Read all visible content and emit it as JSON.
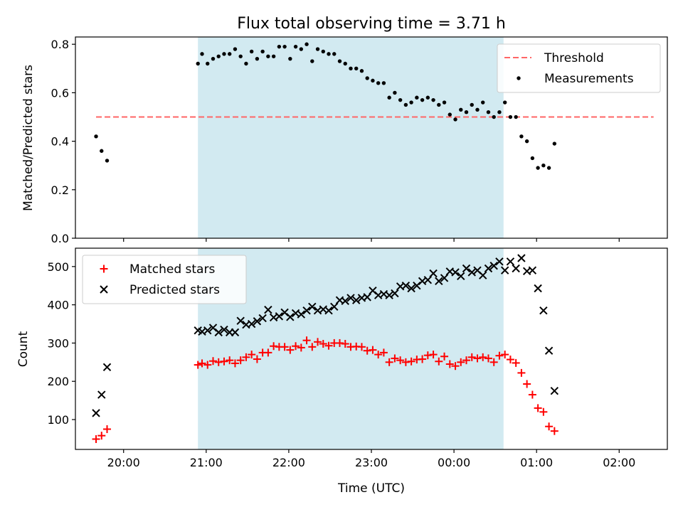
{
  "chart_data": [
    {
      "type": "scatter",
      "title": "Flux total observing time = 3.71 h",
      "ylabel": "Matched/Predicted stars",
      "xlabel": "",
      "xlim": [
        "19:25",
        "02:35"
      ],
      "ylim": [
        0,
        0.83
      ],
      "yticks": [
        "0.0",
        "0.2",
        "0.4",
        "0.6",
        "0.8"
      ],
      "shaded_interval": [
        "20:54",
        "00:36"
      ],
      "shade_color": "#add8e6",
      "threshold": {
        "name": "Threshold",
        "value": 0.5,
        "x": [
          "19:40",
          "02:25"
        ],
        "color": "#ff6666"
      },
      "series": [
        {
          "name": "Measurements",
          "color": "#000000",
          "points": [
            [
              "19:40",
              0.42
            ],
            [
              "19:44",
              0.36
            ],
            [
              "19:48",
              0.32
            ],
            [
              "20:54",
              0.72
            ],
            [
              "20:57",
              0.76
            ],
            [
              "21:01",
              0.72
            ],
            [
              "21:05",
              0.74
            ],
            [
              "21:09",
              0.75
            ],
            [
              "21:13",
              0.76
            ],
            [
              "21:17",
              0.76
            ],
            [
              "21:21",
              0.78
            ],
            [
              "21:25",
              0.75
            ],
            [
              "21:29",
              0.72
            ],
            [
              "21:33",
              0.77
            ],
            [
              "21:37",
              0.74
            ],
            [
              "21:41",
              0.77
            ],
            [
              "21:45",
              0.75
            ],
            [
              "21:49",
              0.75
            ],
            [
              "21:53",
              0.79
            ],
            [
              "21:57",
              0.79
            ],
            [
              "22:01",
              0.74
            ],
            [
              "22:05",
              0.79
            ],
            [
              "22:09",
              0.78
            ],
            [
              "22:13",
              0.8
            ],
            [
              "22:17",
              0.73
            ],
            [
              "22:21",
              0.78
            ],
            [
              "22:25",
              0.77
            ],
            [
              "22:29",
              0.76
            ],
            [
              "22:33",
              0.76
            ],
            [
              "22:37",
              0.73
            ],
            [
              "22:41",
              0.72
            ],
            [
              "22:45",
              0.7
            ],
            [
              "22:49",
              0.7
            ],
            [
              "22:53",
              0.69
            ],
            [
              "22:57",
              0.66
            ],
            [
              "23:01",
              0.65
            ],
            [
              "23:05",
              0.64
            ],
            [
              "23:09",
              0.64
            ],
            [
              "23:13",
              0.58
            ],
            [
              "23:17",
              0.6
            ],
            [
              "23:21",
              0.57
            ],
            [
              "23:25",
              0.55
            ],
            [
              "23:29",
              0.56
            ],
            [
              "23:33",
              0.58
            ],
            [
              "23:37",
              0.57
            ],
            [
              "23:41",
              0.58
            ],
            [
              "23:45",
              0.57
            ],
            [
              "23:49",
              0.55
            ],
            [
              "23:53",
              0.56
            ],
            [
              "23:57",
              0.51
            ],
            [
              "00:01",
              0.49
            ],
            [
              "00:05",
              0.53
            ],
            [
              "00:09",
              0.52
            ],
            [
              "00:13",
              0.55
            ],
            [
              "00:17",
              0.53
            ],
            [
              "00:21",
              0.56
            ],
            [
              "00:25",
              0.52
            ],
            [
              "00:29",
              0.5
            ],
            [
              "00:33",
              0.52
            ],
            [
              "00:37",
              0.56
            ],
            [
              "00:41",
              0.5
            ],
            [
              "00:45",
              0.5
            ],
            [
              "00:49",
              0.42
            ],
            [
              "00:53",
              0.4
            ],
            [
              "00:57",
              0.33
            ],
            [
              "01:01",
              0.29
            ],
            [
              "01:05",
              0.3
            ],
            [
              "01:09",
              0.29
            ],
            [
              "01:13",
              0.39
            ]
          ]
        }
      ],
      "legend": "top-right"
    },
    {
      "type": "scatter",
      "title": "",
      "xlabel": "Time (UTC)",
      "ylabel": "Count",
      "xlim": [
        "19:25",
        "02:35"
      ],
      "ylim": [
        22,
        548
      ],
      "yticks": [
        "100",
        "200",
        "300",
        "400",
        "500"
      ],
      "xticks": [
        "20:00",
        "21:00",
        "22:00",
        "23:00",
        "00:00",
        "01:00",
        "02:00"
      ],
      "shaded_interval": [
        "20:54",
        "00:36"
      ],
      "shade_color": "#add8e6",
      "series": [
        {
          "name": "Matched stars",
          "marker": "+",
          "color": "#ff0000",
          "points": [
            [
              "19:40",
              49
            ],
            [
              "19:44",
              58
            ],
            [
              "19:48",
              75
            ],
            [
              "20:54",
              243
            ],
            [
              "20:57",
              247
            ],
            [
              "21:01",
              243
            ],
            [
              "21:05",
              253
            ],
            [
              "21:09",
              250
            ],
            [
              "21:13",
              252
            ],
            [
              "21:17",
              255
            ],
            [
              "21:21",
              247
            ],
            [
              "21:25",
              255
            ],
            [
              "21:29",
              263
            ],
            [
              "21:33",
              270
            ],
            [
              "21:37",
              258
            ],
            [
              "21:41",
              275
            ],
            [
              "21:45",
              275
            ],
            [
              "21:49",
              292
            ],
            [
              "21:53",
              290
            ],
            [
              "21:57",
              290
            ],
            [
              "22:01",
              282
            ],
            [
              "22:05",
              292
            ],
            [
              "22:09",
              288
            ],
            [
              "22:13",
              307
            ],
            [
              "22:17",
              290
            ],
            [
              "22:21",
              303
            ],
            [
              "22:25",
              298
            ],
            [
              "22:29",
              293
            ],
            [
              "22:33",
              300
            ],
            [
              "22:37",
              300
            ],
            [
              "22:41",
              298
            ],
            [
              "22:45",
              290
            ],
            [
              "22:49",
              291
            ],
            [
              "22:53",
              290
            ],
            [
              "22:57",
              280
            ],
            [
              "23:01",
              282
            ],
            [
              "23:05",
              270
            ],
            [
              "23:09",
              275
            ],
            [
              "23:13",
              250
            ],
            [
              "23:17",
              260
            ],
            [
              "23:21",
              255
            ],
            [
              "23:25",
              250
            ],
            [
              "23:29",
              252
            ],
            [
              "23:33",
              257
            ],
            [
              "23:37",
              258
            ],
            [
              "23:41",
              268
            ],
            [
              "23:45",
              270
            ],
            [
              "23:49",
              252
            ],
            [
              "23:53",
              265
            ],
            [
              "23:57",
              245
            ],
            [
              "00:01",
              240
            ],
            [
              "00:05",
              250
            ],
            [
              "00:09",
              255
            ],
            [
              "00:13",
              263
            ],
            [
              "00:17",
              260
            ],
            [
              "00:21",
              263
            ],
            [
              "00:25",
              260
            ],
            [
              "00:29",
              250
            ],
            [
              "00:33",
              267
            ],
            [
              "00:37",
              270
            ],
            [
              "00:41",
              257
            ],
            [
              "00:45",
              248
            ],
            [
              "00:49",
              222
            ],
            [
              "00:53",
              193
            ],
            [
              "00:57",
              165
            ],
            [
              "01:01",
              130
            ],
            [
              "01:05",
              120
            ],
            [
              "01:09",
              82
            ],
            [
              "01:13",
              70
            ]
          ]
        },
        {
          "name": "Predicted stars",
          "marker": "x",
          "color": "#000000",
          "points": [
            [
              "19:40",
              117
            ],
            [
              "19:44",
              165
            ],
            [
              "19:48",
              237
            ],
            [
              "20:54",
              333
            ],
            [
              "20:57",
              330
            ],
            [
              "21:01",
              333
            ],
            [
              "21:05",
              340
            ],
            [
              "21:09",
              328
            ],
            [
              "21:13",
              335
            ],
            [
              "21:17",
              328
            ],
            [
              "21:21",
              328
            ],
            [
              "21:25",
              358
            ],
            [
              "21:29",
              348
            ],
            [
              "21:33",
              350
            ],
            [
              "21:37",
              357
            ],
            [
              "21:41",
              365
            ],
            [
              "21:45",
              387
            ],
            [
              "21:49",
              367
            ],
            [
              "21:53",
              370
            ],
            [
              "21:57",
              380
            ],
            [
              "22:01",
              368
            ],
            [
              "22:05",
              378
            ],
            [
              "22:09",
              375
            ],
            [
              "22:13",
              385
            ],
            [
              "22:17",
              395
            ],
            [
              "22:21",
              385
            ],
            [
              "22:25",
              388
            ],
            [
              "22:29",
              385
            ],
            [
              "22:33",
              395
            ],
            [
              "22:37",
              412
            ],
            [
              "22:41",
              410
            ],
            [
              "22:45",
              418
            ],
            [
              "22:49",
              412
            ],
            [
              "22:53",
              418
            ],
            [
              "22:57",
              420
            ],
            [
              "23:01",
              437
            ],
            [
              "23:05",
              425
            ],
            [
              "23:09",
              428
            ],
            [
              "23:13",
              425
            ],
            [
              "23:17",
              430
            ],
            [
              "23:21",
              448
            ],
            [
              "23:25",
              450
            ],
            [
              "23:29",
              443
            ],
            [
              "23:33",
              450
            ],
            [
              "23:37",
              462
            ],
            [
              "23:41",
              465
            ],
            [
              "23:45",
              482
            ],
            [
              "23:49",
              462
            ],
            [
              "23:53",
              470
            ],
            [
              "23:57",
              487
            ],
            [
              "00:01",
              485
            ],
            [
              "00:05",
              475
            ],
            [
              "00:09",
              495
            ],
            [
              "00:13",
              485
            ],
            [
              "00:17",
              490
            ],
            [
              "00:21",
              477
            ],
            [
              "00:25",
              495
            ],
            [
              "00:29",
              502
            ],
            [
              "00:33",
              513
            ],
            [
              "00:37",
              490
            ],
            [
              "00:41",
              513
            ],
            [
              "00:45",
              495
            ],
            [
              "00:49",
              522
            ],
            [
              "00:53",
              488
            ],
            [
              "00:57",
              490
            ],
            [
              "01:01",
              443
            ],
            [
              "01:05",
              385
            ],
            [
              "01:09",
              280
            ],
            [
              "01:13",
              175
            ]
          ]
        }
      ],
      "legend": "top-left"
    }
  ]
}
